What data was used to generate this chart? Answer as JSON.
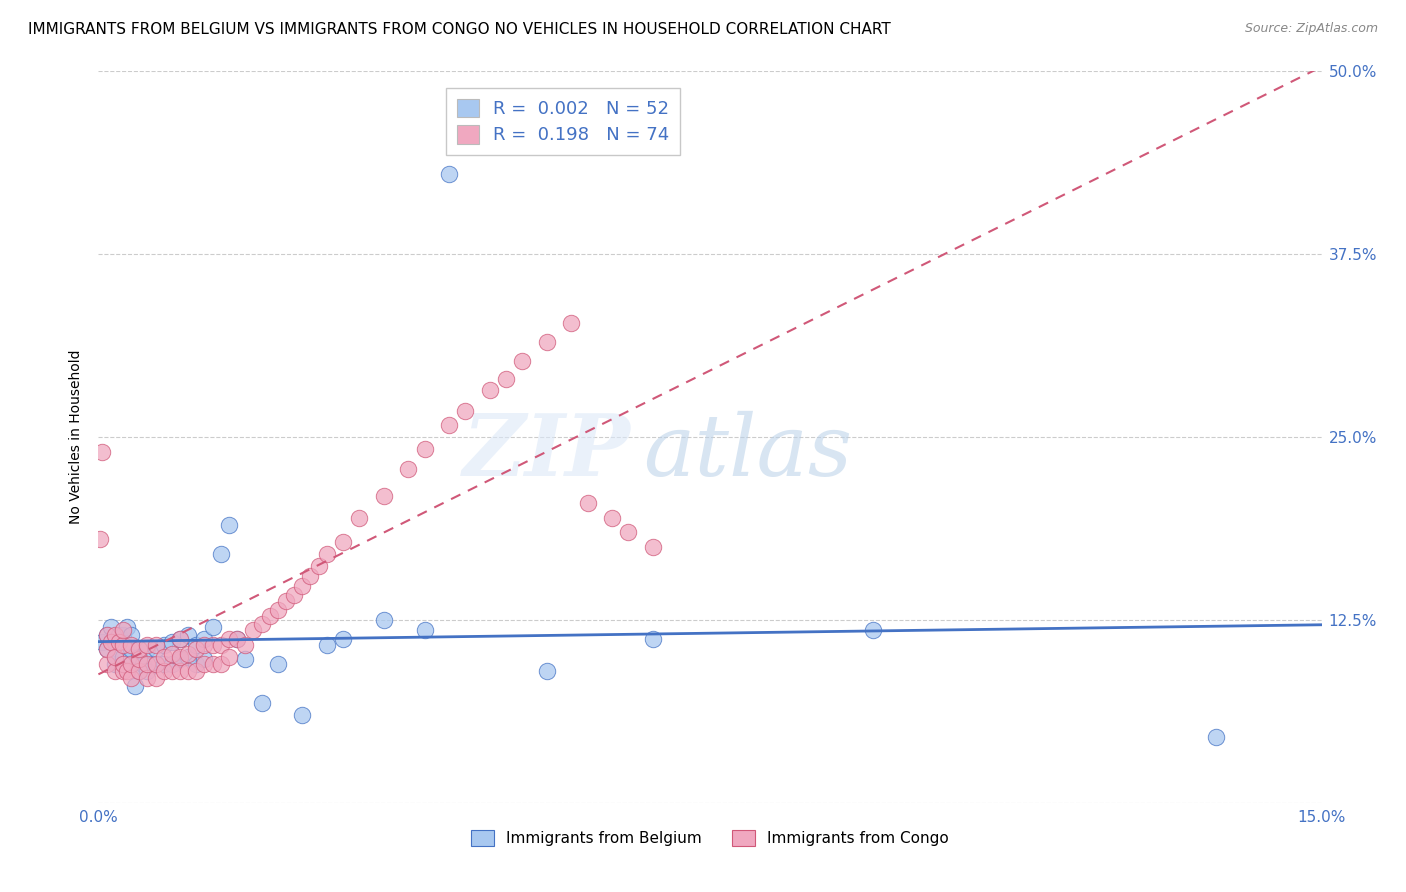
{
  "title": "IMMIGRANTS FROM BELGIUM VS IMMIGRANTS FROM CONGO NO VEHICLES IN HOUSEHOLD CORRELATION CHART",
  "source": "Source: ZipAtlas.com",
  "ylabel": "No Vehicles in Household",
  "xlim": [
    0.0,
    0.15
  ],
  "ylim": [
    0.0,
    0.5
  ],
  "xtick_positions": [
    0.0,
    0.025,
    0.05,
    0.075,
    0.1,
    0.125,
    0.15
  ],
  "xticklabels": [
    "0.0%",
    "",
    "",
    "",
    "",
    "",
    "15.0%"
  ],
  "ytick_positions": [
    0.0,
    0.125,
    0.25,
    0.375,
    0.5
  ],
  "yticklabels_left": [
    "",
    "",
    "",
    "",
    ""
  ],
  "yticklabels_right": [
    "",
    "12.5%",
    "25.0%",
    "37.5%",
    "50.0%"
  ],
  "legend1_r": "0.002",
  "legend1_n": "52",
  "legend2_r": "0.198",
  "legend2_n": "74",
  "color_belgium": "#a8c8f0",
  "color_congo": "#f0a8c0",
  "color_trend_belgium": "#4472c4",
  "color_trend_congo": "#d05878",
  "color_labels": "#4472c4",
  "watermark_zip": "ZIP",
  "watermark_atlas": "atlas",
  "title_fontsize": 11,
  "axis_label_fontsize": 10,
  "tick_fontsize": 11,
  "legend_fontsize": 13,
  "belgium_x": [
    0.0005,
    0.001,
    0.001,
    0.0015,
    0.002,
    0.002,
    0.002,
    0.0025,
    0.003,
    0.003,
    0.003,
    0.0035,
    0.004,
    0.004,
    0.004,
    0.0045,
    0.005,
    0.005,
    0.0055,
    0.006,
    0.006,
    0.007,
    0.007,
    0.008,
    0.008,
    0.009,
    0.009,
    0.01,
    0.01,
    0.011,
    0.011,
    0.012,
    0.012,
    0.013,
    0.013,
    0.014,
    0.015,
    0.016,
    0.017,
    0.018,
    0.02,
    0.022,
    0.025,
    0.028,
    0.03,
    0.035,
    0.04,
    0.043,
    0.055,
    0.068,
    0.095,
    0.137
  ],
  "belgium_y": [
    0.11,
    0.105,
    0.115,
    0.12,
    0.095,
    0.1,
    0.11,
    0.115,
    0.095,
    0.1,
    0.115,
    0.12,
    0.1,
    0.105,
    0.115,
    0.08,
    0.09,
    0.1,
    0.095,
    0.09,
    0.105,
    0.095,
    0.105,
    0.095,
    0.108,
    0.095,
    0.11,
    0.098,
    0.112,
    0.1,
    0.115,
    0.095,
    0.108,
    0.098,
    0.112,
    0.12,
    0.17,
    0.19,
    0.112,
    0.098,
    0.068,
    0.095,
    0.06,
    0.108,
    0.112,
    0.125,
    0.118,
    0.43,
    0.09,
    0.112,
    0.118,
    0.045
  ],
  "congo_x": [
    0.0002,
    0.0005,
    0.001,
    0.001,
    0.001,
    0.0015,
    0.002,
    0.002,
    0.002,
    0.0025,
    0.003,
    0.003,
    0.003,
    0.003,
    0.0035,
    0.004,
    0.004,
    0.004,
    0.005,
    0.005,
    0.005,
    0.006,
    0.006,
    0.006,
    0.007,
    0.007,
    0.007,
    0.008,
    0.008,
    0.009,
    0.009,
    0.01,
    0.01,
    0.01,
    0.011,
    0.011,
    0.012,
    0.012,
    0.013,
    0.013,
    0.014,
    0.014,
    0.015,
    0.015,
    0.016,
    0.016,
    0.017,
    0.018,
    0.019,
    0.02,
    0.021,
    0.022,
    0.023,
    0.024,
    0.025,
    0.026,
    0.027,
    0.028,
    0.03,
    0.032,
    0.035,
    0.038,
    0.04,
    0.043,
    0.045,
    0.048,
    0.05,
    0.052,
    0.055,
    0.058,
    0.06,
    0.063,
    0.065,
    0.068
  ],
  "congo_y": [
    0.18,
    0.24,
    0.095,
    0.105,
    0.115,
    0.11,
    0.09,
    0.1,
    0.115,
    0.11,
    0.09,
    0.095,
    0.108,
    0.118,
    0.09,
    0.085,
    0.095,
    0.108,
    0.09,
    0.098,
    0.105,
    0.085,
    0.095,
    0.108,
    0.085,
    0.095,
    0.108,
    0.09,
    0.1,
    0.09,
    0.102,
    0.09,
    0.1,
    0.112,
    0.09,
    0.102,
    0.09,
    0.105,
    0.095,
    0.108,
    0.095,
    0.108,
    0.095,
    0.108,
    0.1,
    0.112,
    0.112,
    0.108,
    0.118,
    0.122,
    0.128,
    0.132,
    0.138,
    0.142,
    0.148,
    0.155,
    0.162,
    0.17,
    0.178,
    0.195,
    0.21,
    0.228,
    0.242,
    0.258,
    0.268,
    0.282,
    0.29,
    0.302,
    0.315,
    0.328,
    0.205,
    0.195,
    0.185,
    0.175
  ]
}
